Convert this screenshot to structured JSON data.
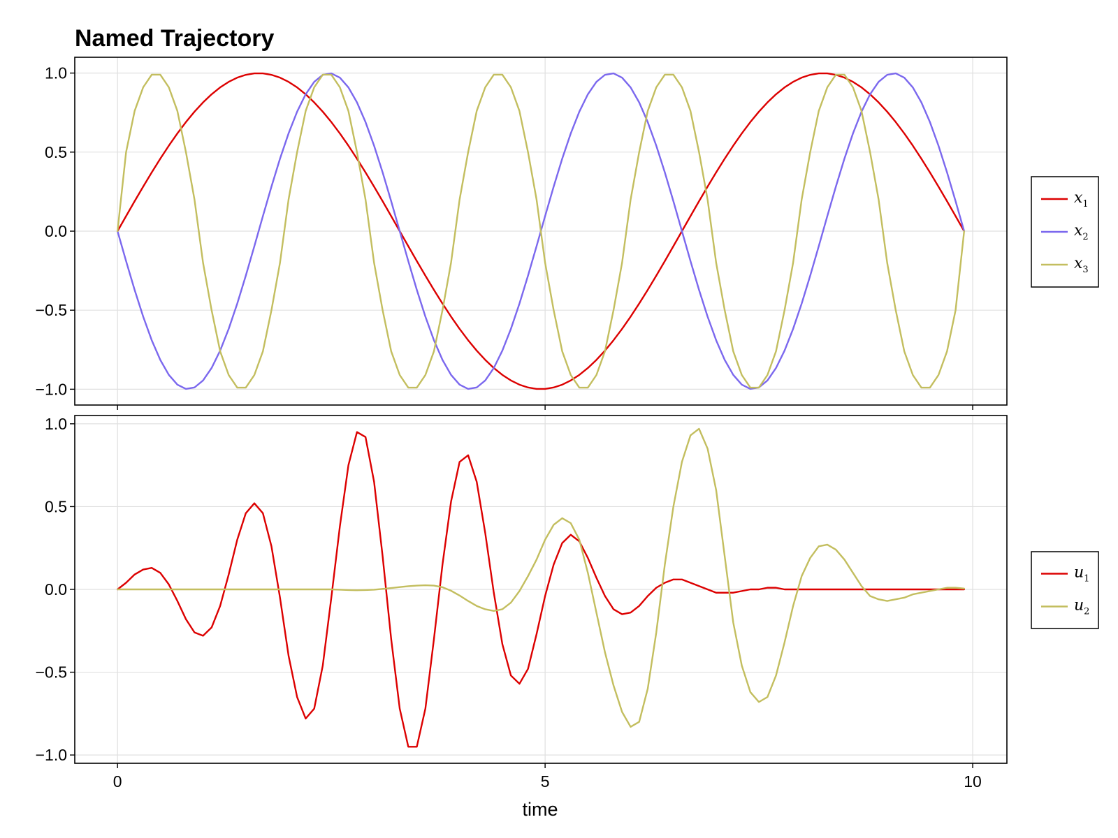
{
  "title": "Named Trajectory",
  "chart_data": [
    {
      "type": "line",
      "title": "Named Trajectory",
      "xlabel": "",
      "ylabel": "",
      "xlim": [
        -0.5,
        10.4
      ],
      "ylim": [
        -1.1,
        1.1
      ],
      "xticks": [
        0,
        5,
        10
      ],
      "xtick_labels_visible": false,
      "yticks": [
        -1.0,
        -0.5,
        0.0,
        0.5,
        1.0
      ],
      "ytick_labels": [
        "−1.0",
        "−0.5",
        "0.0",
        "0.5",
        "1.0"
      ],
      "grid": true,
      "legend_position": "right",
      "t": [
        0.0,
        0.1,
        0.2,
        0.3,
        0.4,
        0.5,
        0.6,
        0.7,
        0.8,
        0.9,
        1.0,
        1.1,
        1.2,
        1.3,
        1.4,
        1.5,
        1.6,
        1.7,
        1.8,
        1.9,
        2.0,
        2.1,
        2.2,
        2.3,
        2.4,
        2.5,
        2.6,
        2.7,
        2.8,
        2.9,
        3.0,
        3.1,
        3.2,
        3.3,
        3.4,
        3.5,
        3.6,
        3.7,
        3.8,
        3.9,
        4.0,
        4.1,
        4.2,
        4.3,
        4.4,
        4.5,
        4.6,
        4.7,
        4.8,
        4.9,
        5.0,
        5.1,
        5.2,
        5.3,
        5.4,
        5.5,
        5.6,
        5.7,
        5.8,
        5.9,
        6.0,
        6.1,
        6.2,
        6.3,
        6.4,
        6.5,
        6.6,
        6.7,
        6.8,
        6.9,
        7.0,
        7.1,
        7.2,
        7.3,
        7.4,
        7.5,
        7.6,
        7.7,
        7.8,
        7.9,
        8.0,
        8.1,
        8.2,
        8.3,
        8.4,
        8.5,
        8.6,
        8.7,
        8.8,
        8.9,
        9.0,
        9.1,
        9.2,
        9.3,
        9.4,
        9.5,
        9.6,
        9.7,
        9.8,
        9.9
      ],
      "series": [
        {
          "name": "x",
          "subscript": "1",
          "color": "#dc0000",
          "values": [
            0.0,
            0.0951,
            0.1893,
            0.2817,
            0.3717,
            0.4582,
            0.5407,
            0.6182,
            0.6901,
            0.7557,
            0.8145,
            0.8658,
            0.9093,
            0.9445,
            0.9712,
            0.989,
            0.9979,
            0.9979,
            0.989,
            0.9712,
            0.9445,
            0.9093,
            0.8658,
            0.8145,
            0.7557,
            0.6901,
            0.6182,
            0.5407,
            0.4582,
            0.3717,
            0.2817,
            0.1893,
            0.0951,
            0.0,
            -0.0951,
            -0.1893,
            -0.2817,
            -0.3717,
            -0.4582,
            -0.5407,
            -0.6182,
            -0.6901,
            -0.7557,
            -0.8145,
            -0.8658,
            -0.9093,
            -0.9445,
            -0.9712,
            -0.989,
            -0.9979,
            -0.9979,
            -0.989,
            -0.9712,
            -0.9445,
            -0.9093,
            -0.8658,
            -0.8145,
            -0.7557,
            -0.6901,
            -0.6182,
            -0.5407,
            -0.4582,
            -0.3717,
            -0.2817,
            -0.1893,
            -0.0951,
            0.0,
            0.0951,
            0.1893,
            0.2817,
            0.3717,
            0.4582,
            0.5407,
            0.6182,
            0.6901,
            0.7557,
            0.8145,
            0.8658,
            0.9093,
            0.9445,
            0.9712,
            0.989,
            0.9979,
            0.9979,
            0.989,
            0.9712,
            0.9445,
            0.9093,
            0.8658,
            0.8145,
            0.7557,
            0.6901,
            0.6182,
            0.5407,
            0.4582,
            0.3717,
            0.2817,
            0.1893,
            0.0951,
            0.0
          ]
        },
        {
          "name": "x",
          "subscript": "2",
          "color": "#7b68ee",
          "values": [
            0.0,
            -0.1893,
            -0.3717,
            -0.5407,
            -0.6901,
            -0.8145,
            -0.9093,
            -0.9712,
            -0.9979,
            -0.989,
            -0.9445,
            -0.8658,
            -0.7557,
            -0.6182,
            -0.4582,
            -0.2817,
            -0.0951,
            0.0951,
            0.2817,
            0.4582,
            0.6182,
            0.7557,
            0.8658,
            0.9445,
            0.989,
            0.9979,
            0.9712,
            0.9093,
            0.8145,
            0.6901,
            0.5407,
            0.3717,
            0.1893,
            0.0,
            -0.1893,
            -0.3717,
            -0.5407,
            -0.6901,
            -0.8145,
            -0.9093,
            -0.9712,
            -0.9979,
            -0.989,
            -0.9445,
            -0.8658,
            -0.7557,
            -0.6182,
            -0.4582,
            -0.2817,
            -0.0951,
            0.0951,
            0.2817,
            0.4582,
            0.6182,
            0.7557,
            0.8658,
            0.9445,
            0.989,
            0.9979,
            0.9712,
            0.9093,
            0.8145,
            0.6901,
            0.5407,
            0.3717,
            0.1893,
            0.0,
            -0.1893,
            -0.3717,
            -0.5407,
            -0.6901,
            -0.8145,
            -0.9093,
            -0.9712,
            -0.9979,
            -0.989,
            -0.9445,
            -0.8658,
            -0.7557,
            -0.6182,
            -0.4582,
            -0.2817,
            -0.0951,
            0.0951,
            0.2817,
            0.4582,
            0.6182,
            0.7557,
            0.8658,
            0.9445,
            0.989,
            0.9979,
            0.9712,
            0.9093,
            0.8145,
            0.6901,
            0.5407,
            0.3717,
            0.1893,
            0.0
          ]
        },
        {
          "name": "x",
          "subscript": "3",
          "color": "#c3be5f",
          "values": [
            0.0,
            0.5,
            0.76,
            0.91,
            0.99,
            0.99,
            0.91,
            0.76,
            0.5,
            0.2,
            -0.2,
            -0.5,
            -0.76,
            -0.91,
            -0.99,
            -0.99,
            -0.91,
            -0.76,
            -0.5,
            -0.2,
            0.2,
            0.5,
            0.76,
            0.91,
            0.99,
            0.99,
            0.91,
            0.76,
            0.5,
            0.2,
            -0.2,
            -0.5,
            -0.76,
            -0.91,
            -0.99,
            -0.99,
            -0.91,
            -0.76,
            -0.5,
            -0.2,
            0.2,
            0.5,
            0.76,
            0.91,
            0.99,
            0.99,
            0.91,
            0.76,
            0.5,
            0.2,
            -0.2,
            -0.5,
            -0.76,
            -0.91,
            -0.99,
            -0.99,
            -0.91,
            -0.76,
            -0.5,
            -0.2,
            0.2,
            0.5,
            0.76,
            0.91,
            0.99,
            0.99,
            0.91,
            0.76,
            0.5,
            0.2,
            -0.2,
            -0.5,
            -0.76,
            -0.91,
            -0.99,
            -0.99,
            -0.91,
            -0.76,
            -0.5,
            -0.2,
            0.2,
            0.5,
            0.76,
            0.91,
            0.99,
            0.99,
            0.91,
            0.76,
            0.5,
            0.2,
            -0.2,
            -0.5,
            -0.76,
            -0.91,
            -0.99,
            -0.99,
            -0.91,
            -0.76,
            -0.5,
            0.0
          ]
        }
      ]
    },
    {
      "type": "line",
      "title": "",
      "xlabel": "time",
      "ylabel": "",
      "xlim": [
        -0.5,
        10.4
      ],
      "ylim": [
        -1.05,
        1.05
      ],
      "xticks": [
        0,
        5,
        10
      ],
      "xtick_labels": [
        "0",
        "5",
        "10"
      ],
      "yticks": [
        -1.0,
        -0.5,
        0.0,
        0.5,
        1.0
      ],
      "ytick_labels": [
        "−1.0",
        "−0.5",
        "0.0",
        "0.5",
        "1.0"
      ],
      "grid": true,
      "legend_position": "right",
      "t": [
        0.0,
        0.1,
        0.2,
        0.3,
        0.4,
        0.5,
        0.6,
        0.7,
        0.8,
        0.9,
        1.0,
        1.1,
        1.2,
        1.3,
        1.4,
        1.5,
        1.6,
        1.7,
        1.8,
        1.9,
        2.0,
        2.1,
        2.2,
        2.3,
        2.4,
        2.5,
        2.6,
        2.7,
        2.8,
        2.9,
        3.0,
        3.1,
        3.2,
        3.3,
        3.4,
        3.5,
        3.6,
        3.7,
        3.8,
        3.9,
        4.0,
        4.1,
        4.2,
        4.3,
        4.4,
        4.5,
        4.6,
        4.7,
        4.8,
        4.9,
        5.0,
        5.1,
        5.2,
        5.3,
        5.4,
        5.5,
        5.6,
        5.7,
        5.8,
        5.9,
        6.0,
        6.1,
        6.2,
        6.3,
        6.4,
        6.5,
        6.6,
        6.7,
        6.8,
        6.9,
        7.0,
        7.1,
        7.2,
        7.3,
        7.4,
        7.5,
        7.6,
        7.7,
        7.8,
        7.9,
        8.0,
        8.1,
        8.2,
        8.3,
        8.4,
        8.5,
        8.6,
        8.7,
        8.8,
        8.9,
        9.0,
        9.1,
        9.2,
        9.3,
        9.4,
        9.5,
        9.6,
        9.7,
        9.8,
        9.9
      ],
      "series": [
        {
          "name": "u",
          "subscript": "1",
          "color": "#dc0000",
          "values": [
            0.0,
            0.04,
            0.09,
            0.12,
            0.13,
            0.1,
            0.03,
            -0.07,
            -0.18,
            -0.26,
            -0.28,
            -0.23,
            -0.1,
            0.09,
            0.3,
            0.46,
            0.52,
            0.46,
            0.26,
            -0.05,
            -0.4,
            -0.65,
            -0.78,
            -0.72,
            -0.46,
            -0.05,
            0.38,
            0.75,
            0.95,
            0.92,
            0.65,
            0.2,
            -0.3,
            -0.72,
            -0.95,
            -0.95,
            -0.72,
            -0.3,
            0.15,
            0.53,
            0.77,
            0.81,
            0.65,
            0.34,
            -0.02,
            -0.33,
            -0.52,
            -0.57,
            -0.48,
            -0.27,
            -0.04,
            0.15,
            0.28,
            0.33,
            0.29,
            0.19,
            0.07,
            -0.04,
            -0.12,
            -0.15,
            -0.14,
            -0.1,
            -0.04,
            0.01,
            0.04,
            0.06,
            0.06,
            0.04,
            0.02,
            0.0,
            -0.02,
            -0.02,
            -0.02,
            -0.01,
            0.0,
            0.0,
            0.01,
            0.01,
            0.0,
            0.0,
            0.0,
            0.0,
            0.0,
            0.0,
            0.0,
            0.0,
            0.0,
            0.0,
            0.0,
            0.0,
            0.0,
            0.0,
            0.0,
            0.0,
            0.0,
            0.0,
            0.0,
            0.0,
            0.0,
            0.0
          ]
        },
        {
          "name": "u",
          "subscript": "2",
          "color": "#c3be5f",
          "values": [
            0.0,
            0.0,
            0.0,
            0.0,
            0.0,
            0.0,
            0.0,
            0.0,
            0.0,
            0.0,
            0.0,
            0.0,
            0.0,
            0.0,
            0.0,
            0.0,
            0.0,
            0.0,
            0.0,
            0.0,
            0.0,
            0.0,
            0.0,
            0.0,
            0.0,
            0.0,
            -0.002,
            -0.004,
            -0.005,
            -0.004,
            -0.002,
            0.003,
            0.008,
            0.014,
            0.019,
            0.023,
            0.025,
            0.023,
            0.013,
            -0.008,
            -0.037,
            -0.07,
            -0.1,
            -0.12,
            -0.13,
            -0.12,
            -0.08,
            -0.01,
            0.08,
            0.18,
            0.3,
            0.39,
            0.43,
            0.4,
            0.3,
            0.1,
            -0.14,
            -0.38,
            -0.58,
            -0.74,
            -0.83,
            -0.8,
            -0.6,
            -0.26,
            0.15,
            0.5,
            0.77,
            0.93,
            0.97,
            0.85,
            0.6,
            0.2,
            -0.2,
            -0.46,
            -0.62,
            -0.68,
            -0.65,
            -0.52,
            -0.32,
            -0.1,
            0.08,
            0.19,
            0.26,
            0.27,
            0.24,
            0.18,
            0.1,
            0.02,
            -0.04,
            -0.06,
            -0.07,
            -0.06,
            -0.05,
            -0.03,
            -0.02,
            -0.01,
            0.0,
            0.01,
            0.01,
            0.005
          ]
        }
      ]
    }
  ]
}
